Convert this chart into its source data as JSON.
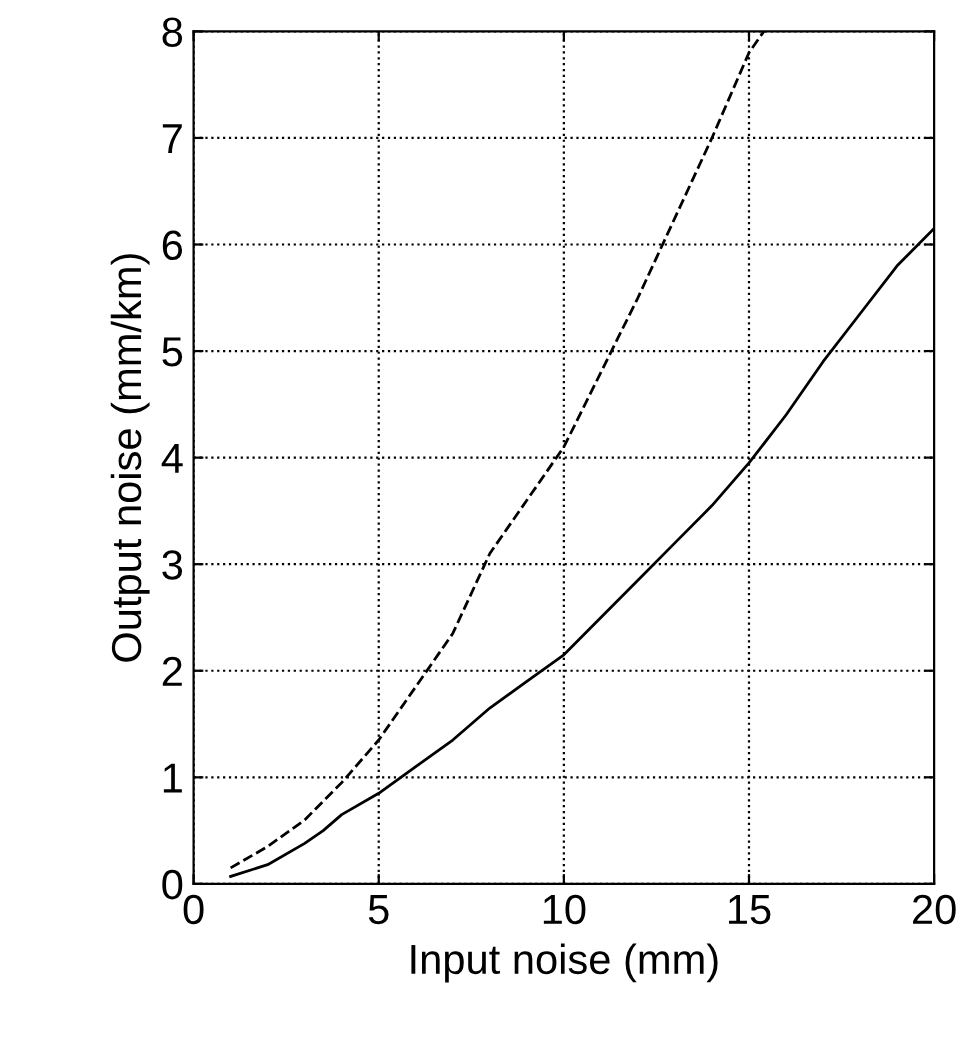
{
  "chart_data": {
    "type": "line",
    "xlabel": "Input noise (mm)",
    "ylabel": "Output noise (mm/km)",
    "xlim": [
      0,
      20
    ],
    "ylim": [
      0,
      8
    ],
    "xticks": [
      0,
      5,
      10,
      15,
      20
    ],
    "yticks": [
      0,
      1,
      2,
      3,
      4,
      5,
      6,
      7,
      8
    ],
    "grid": true,
    "legend": false,
    "series": [
      {
        "color": "#000000",
        "line_style": "solid",
        "x": [
          1,
          2,
          3,
          3.5,
          4,
          5,
          6,
          7,
          8,
          9,
          10,
          11,
          12,
          13,
          14,
          15,
          16,
          17,
          18,
          19,
          20
        ],
        "values": [
          0.07,
          0.18,
          0.38,
          0.5,
          0.65,
          0.85,
          1.1,
          1.35,
          1.65,
          1.9,
          2.15,
          2.5,
          2.85,
          3.2,
          3.55,
          3.95,
          4.4,
          4.9,
          5.35,
          5.8,
          6.15
        ]
      },
      {
        "color": "#000000",
        "line_style": "dashed",
        "x": [
          1,
          2,
          3,
          4,
          5,
          6,
          7,
          8,
          9,
          10,
          11,
          12,
          13,
          14,
          15,
          15.4
        ],
        "values": [
          0.15,
          0.35,
          0.6,
          0.95,
          1.35,
          1.85,
          2.35,
          3.1,
          3.6,
          4.1,
          4.8,
          5.5,
          6.25,
          7.0,
          7.8,
          8.0
        ]
      }
    ]
  }
}
